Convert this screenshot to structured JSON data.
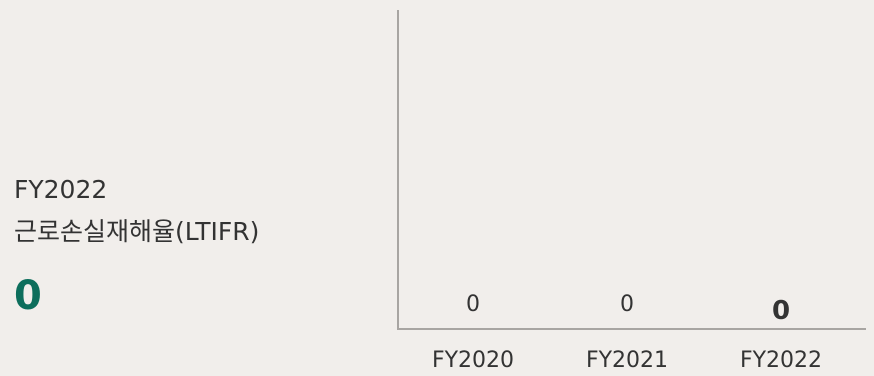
{
  "kpi": {
    "year": "FY2022",
    "metric": "근로손실재해율(LTIFR)",
    "value": "0"
  },
  "colors": {
    "background": "#f1eeeb",
    "accent": "#0d6e5c",
    "axis": "#a8a5a2",
    "text": "#333333"
  },
  "chart_data": {
    "type": "bar",
    "categories": [
      "FY2020",
      "FY2021",
      "FY2022"
    ],
    "values": [
      0,
      0,
      0
    ],
    "value_labels": [
      "0",
      "0",
      "0"
    ],
    "highlight_index": 2,
    "title": "",
    "xlabel": "",
    "ylabel": "",
    "ylim": [
      0,
      1
    ],
    "grid": false
  }
}
